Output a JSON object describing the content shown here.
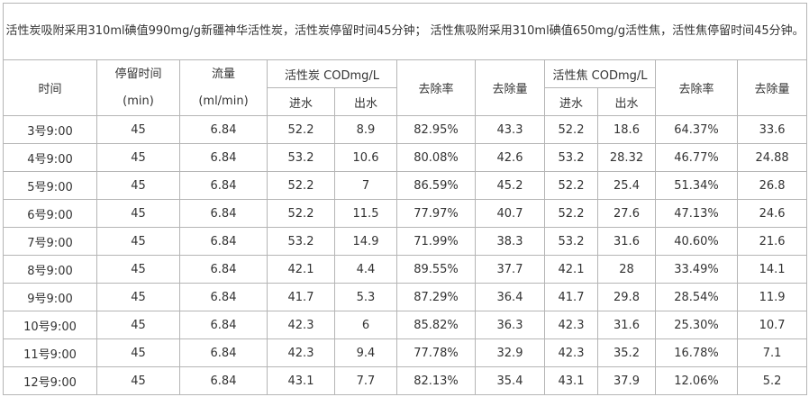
{
  "caption": "活性炭吸附采用310ml碘值990mg/g新疆神华活性炭，活性炭停留时间45分钟； 活性焦吸附采用310ml碘值650mg/g活性焦，活性焦停留时间45分钟。",
  "header": {
    "time": "时间",
    "residence": "停留时间",
    "residence_unit": "(min)",
    "flow": "流量",
    "flow_unit": "(ml/min)",
    "carbon": "活性炭 CODmg/L",
    "coke": "活性焦 CODmg/L",
    "inlet": "进水",
    "outlet": "出水",
    "removal_rate": "去除率",
    "removal_amount": "去除量"
  },
  "table": {
    "rows": [
      [
        "3号9:00",
        "45",
        "6.84",
        "52.2",
        "8.9",
        "82.95%",
        "43.3",
        "52.2",
        "18.6",
        "64.37%",
        "33.6"
      ],
      [
        "4号9:00",
        "45",
        "6.84",
        "53.2",
        "10.6",
        "80.08%",
        "42.6",
        "53.2",
        "28.32",
        "46.77%",
        "24.88"
      ],
      [
        "5号9:00",
        "45",
        "6.84",
        "52.2",
        "7",
        "86.59%",
        "45.2",
        "52.2",
        "25.4",
        "51.34%",
        "26.8"
      ],
      [
        "6号9:00",
        "45",
        "6.84",
        "52.2",
        "11.5",
        "77.97%",
        "40.7",
        "52.2",
        "27.6",
        "47.13%",
        "24.6"
      ],
      [
        "7号9:00",
        "45",
        "6.84",
        "53.2",
        "14.9",
        "71.99%",
        "38.3",
        "53.2",
        "31.6",
        "40.60%",
        "21.6"
      ],
      [
        "8号9:00",
        "45",
        "6.84",
        "42.1",
        "4.4",
        "89.55%",
        "37.7",
        "42.1",
        "28",
        "33.49%",
        "14.1"
      ],
      [
        "9号9:00",
        "45",
        "6.84",
        "41.7",
        "5.3",
        "87.29%",
        "36.4",
        "41.7",
        "29.8",
        "28.54%",
        "11.9"
      ],
      [
        "10号9:00",
        "45",
        "6.84",
        "42.3",
        "6",
        "85.82%",
        "36.3",
        "42.3",
        "31.6",
        "25.30%",
        "10.7"
      ],
      [
        "11号9:00",
        "45",
        "6.84",
        "42.3",
        "9.4",
        "77.78%",
        "32.9",
        "42.3",
        "35.2",
        "16.78%",
        "7.1"
      ],
      [
        "12号9:00",
        "45",
        "6.84",
        "43.1",
        "7.7",
        "82.13%",
        "35.4",
        "43.1",
        "37.9",
        "12.06%",
        "5.2"
      ]
    ]
  }
}
